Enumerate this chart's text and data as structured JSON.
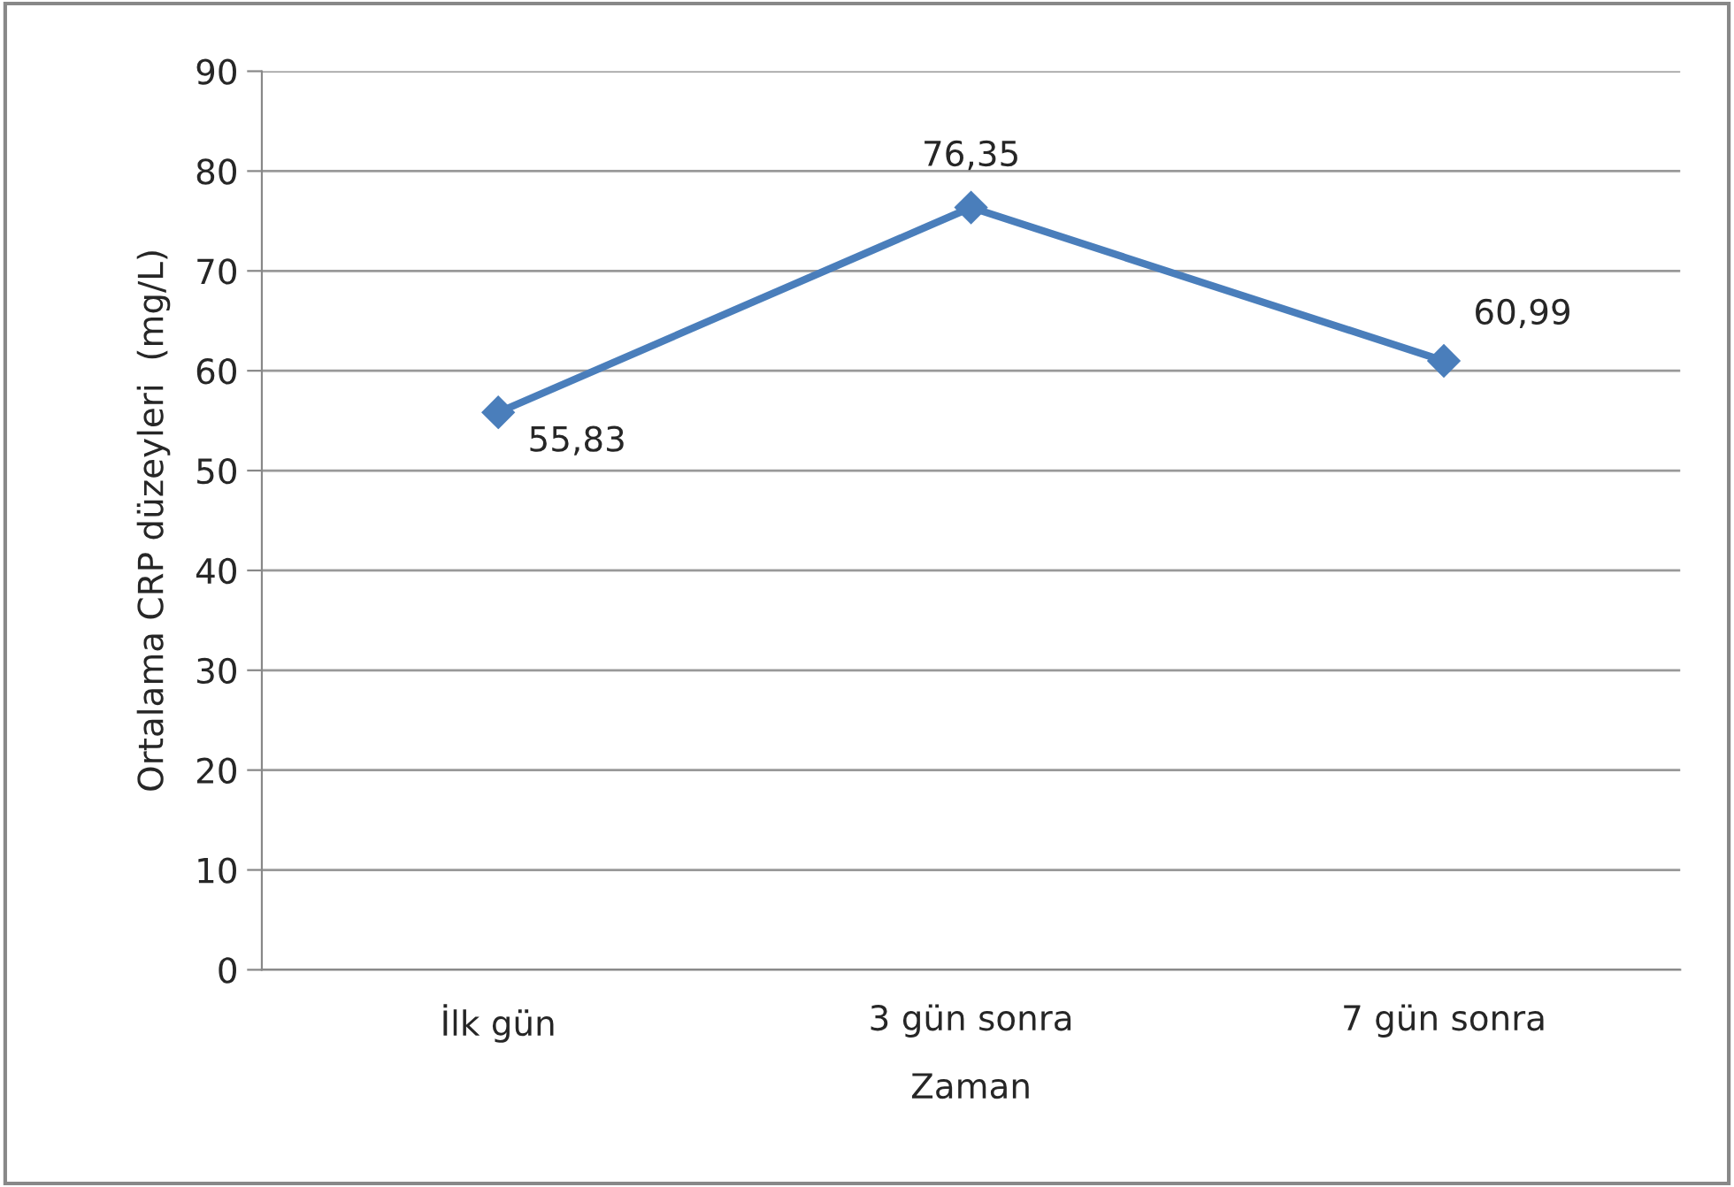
{
  "chart_data": {
    "type": "line",
    "xlabel": "Zaman",
    "ylabel": "Ortalama CRP düzeyleri  (mg/L)",
    "categories": [
      "İlk gün",
      "3 gün sonra",
      "7 gün sonra"
    ],
    "series": [
      {
        "color": "#4a7ebb",
        "values": [
          55.83,
          76.35,
          60.99
        ],
        "value_labels": [
          "55,83",
          "76,35",
          "60,99"
        ]
      }
    ],
    "ylim": [
      0,
      90
    ],
    "yticks": [
      0,
      10,
      20,
      30,
      40,
      50,
      60,
      70,
      80,
      90
    ],
    "grid": "y",
    "legend": false,
    "marker": "diamond",
    "line_style": "solid"
  }
}
